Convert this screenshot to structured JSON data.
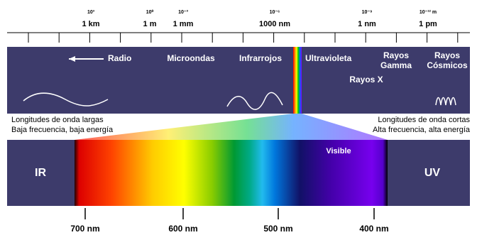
{
  "scale": {
    "marks": [
      {
        "exponent": "10³",
        "length": "1 km"
      },
      {
        "exponent": "10⁰",
        "length": "1 m"
      },
      {
        "exponent": "10⁻³",
        "length": "1 mm"
      },
      {
        "exponent": "10⁻⁶",
        "length": "1000 nm"
      },
      {
        "exponent": "10⁻⁹",
        "length": "1 nm"
      },
      {
        "exponent": "10⁻¹² m",
        "length": "1 pm"
      }
    ]
  },
  "bands": {
    "radio": "Radio",
    "microwave": "Microondas",
    "infrared": "Infrarrojos",
    "ultraviolet": "Ultravioleta",
    "gamma": [
      "Rayos",
      "Gamma"
    ],
    "xray": "Rayos X",
    "cosmic": [
      "Rayos",
      "Cósmicos"
    ]
  },
  "long_waves": [
    "Longitudes de onda largas",
    "Baja frecuencia, baja energía"
  ],
  "short_waves": [
    "Longitudes de onda cortas",
    "Alta frecuencia, alta energía"
  ],
  "visible": {
    "ir": "IR",
    "uv": "UV",
    "label": "Visible",
    "wavelengths": [
      "700 nm",
      "600 nm",
      "500 nm",
      "400 nm"
    ]
  }
}
